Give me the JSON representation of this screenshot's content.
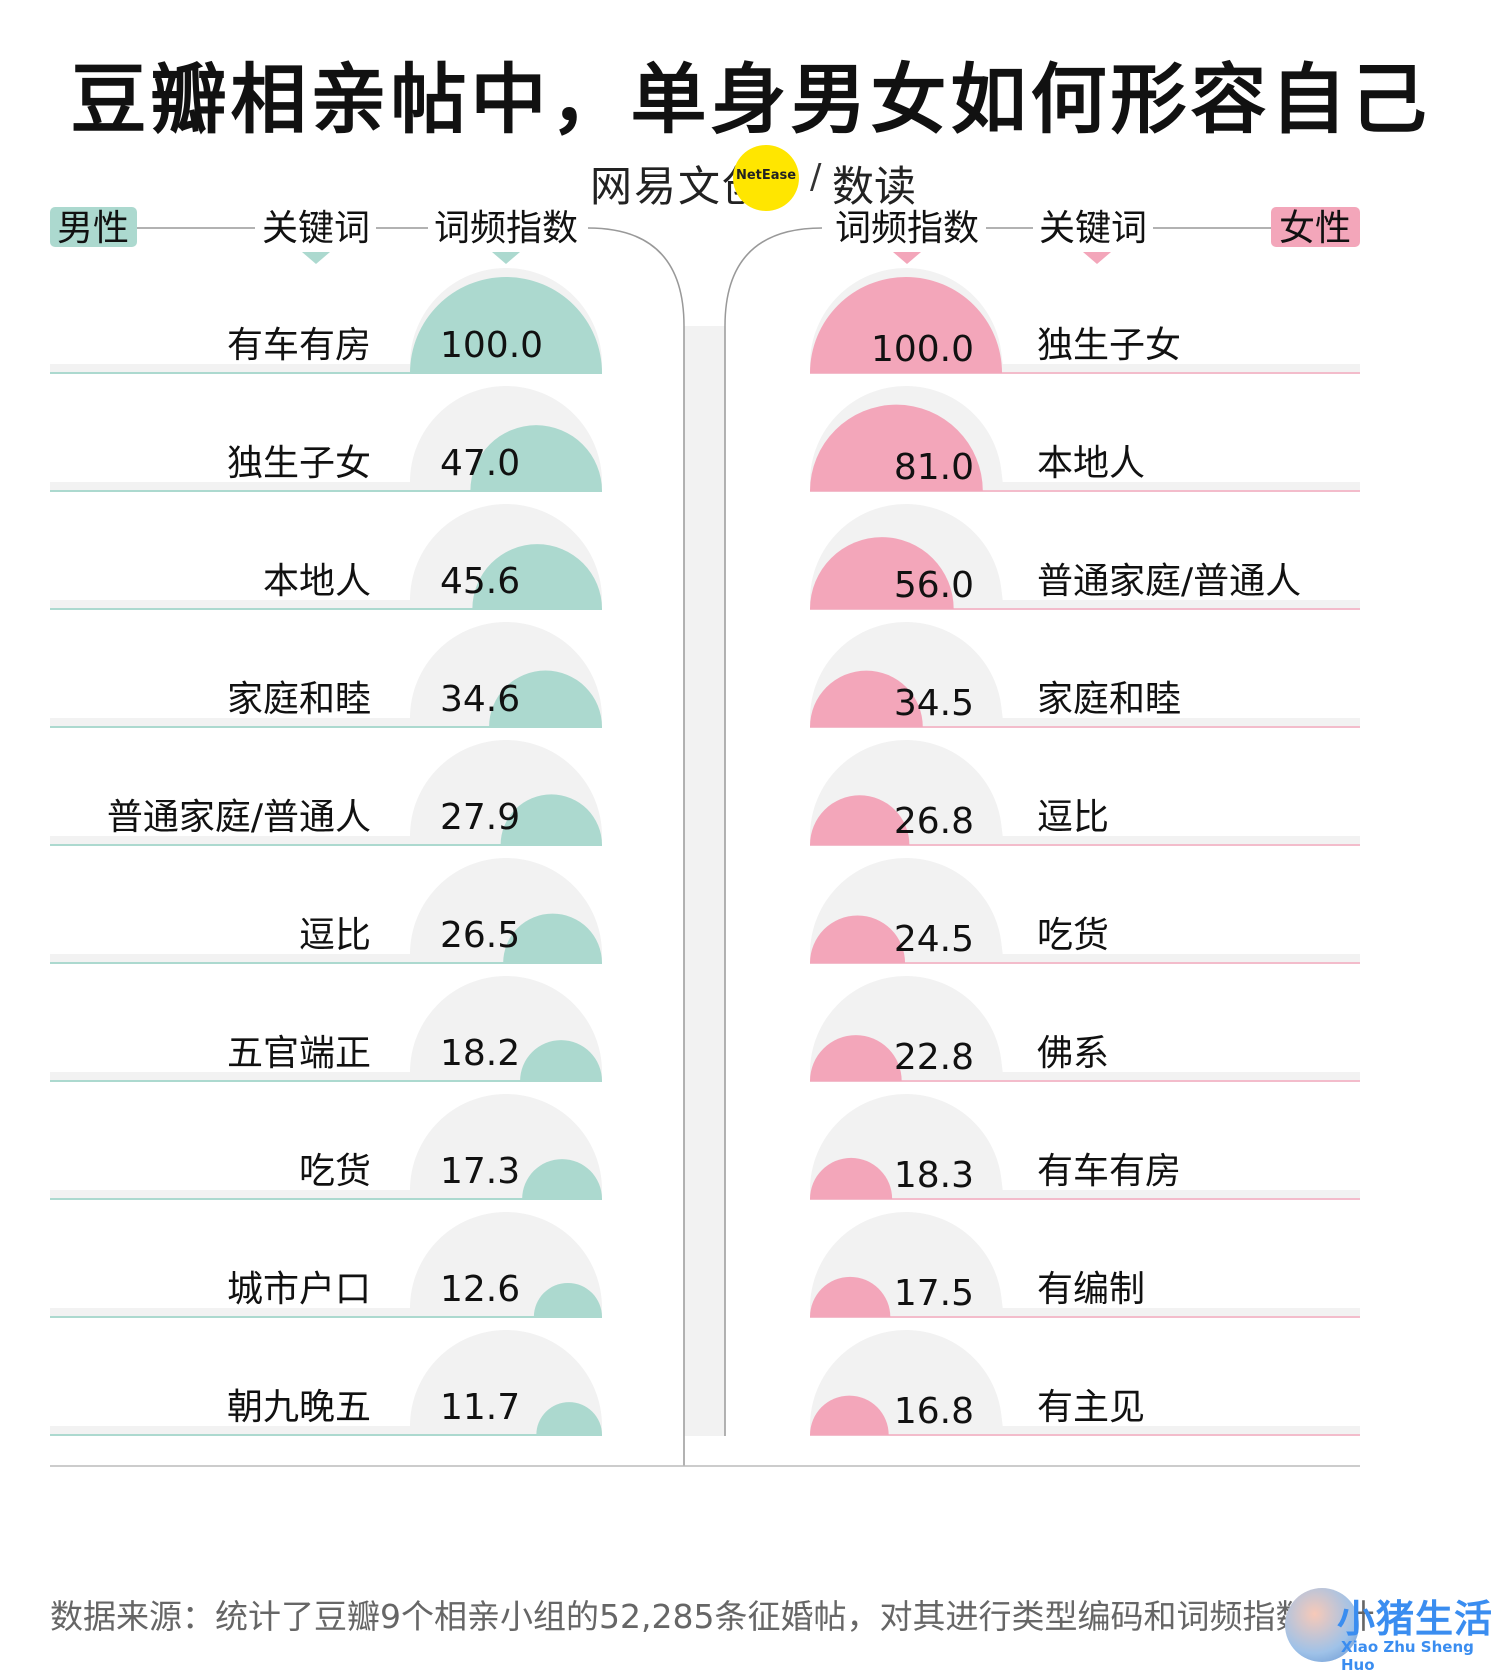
{
  "title": "豆瓣相亲帖中，单身男女如何形容自己",
  "brand": {
    "name": "网易文创",
    "badge": "NetEase",
    "separator": "/",
    "column": "数读"
  },
  "colors": {
    "male": "#acd9cf",
    "female": "#f3a6ba",
    "track": "#f2f2f2",
    "male_line": "#acd9cf",
    "female_line": "#f3bccb"
  },
  "chart_data": [
    {
      "type": "bar",
      "panel": "male",
      "legend_label": "男性",
      "column_headers": {
        "keyword": "关键词",
        "index": "词频指数"
      },
      "categories": [
        "有车有房",
        "独生子女",
        "本地人",
        "家庭和睦",
        "普通家庭/普通人",
        "逗比",
        "五官端正",
        "吃货",
        "城市户口",
        "朝九晚五"
      ],
      "values": [
        100.0,
        47.0,
        45.6,
        34.6,
        27.9,
        26.5,
        18.2,
        17.3,
        12.6,
        11.7
      ],
      "value_labels": [
        "100.0",
        "47.0",
        "45.6",
        "34.6",
        "27.9",
        "26.5",
        "18.2",
        "17.3",
        "12.6",
        "11.7"
      ],
      "ylim": [
        0,
        100
      ]
    },
    {
      "type": "bar",
      "panel": "female",
      "legend_label": "女性",
      "column_headers": {
        "keyword": "关键词",
        "index": "词频指数"
      },
      "categories": [
        "独生子女",
        "本地人",
        "普通家庭/普通人",
        "家庭和睦",
        "逗比",
        "吃货",
        "佛系",
        "有车有房",
        "有编制",
        "有主见"
      ],
      "values": [
        100.0,
        81.0,
        56.0,
        34.5,
        26.8,
        24.5,
        22.8,
        18.3,
        17.5,
        16.8
      ],
      "value_labels": [
        "100.0",
        "81.0",
        "56.0",
        "34.5",
        "26.8",
        "24.5",
        "22.8",
        "18.3",
        "17.5",
        "16.8"
      ],
      "ylim": [
        0,
        100
      ]
    }
  ],
  "footer": "数据来源：统计了豆瓣9个相亲小组的52,285条征婚帖，对其进行类型编码和词频指数统计",
  "watermark": {
    "title": "小猪生活",
    "subtitle": "Xiao Zhu Sheng Huo"
  }
}
